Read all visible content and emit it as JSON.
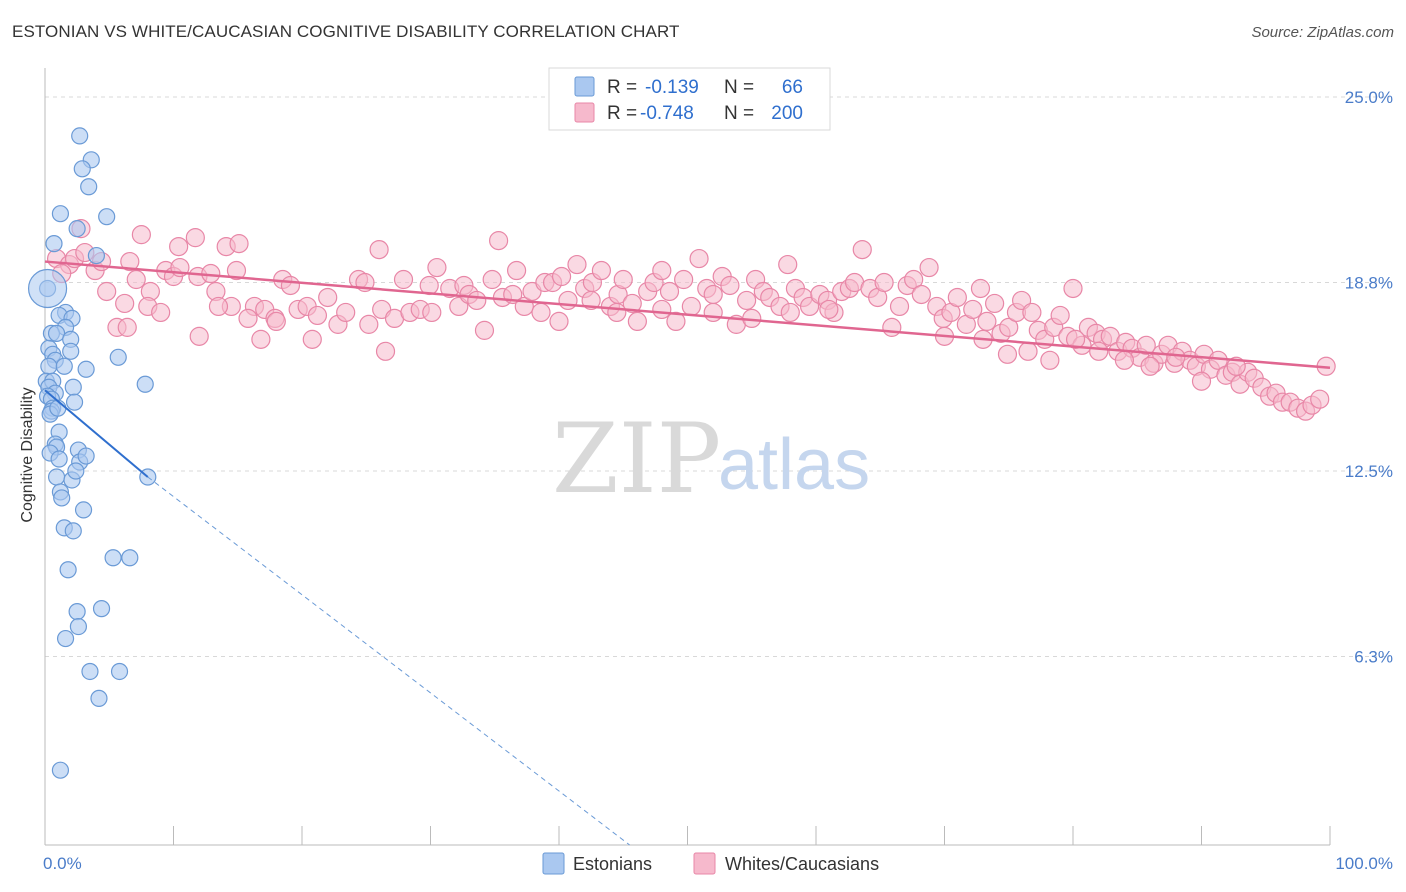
{
  "title": "ESTONIAN VS WHITE/CAUCASIAN COGNITIVE DISABILITY CORRELATION CHART",
  "source": "Source: ZipAtlas.com",
  "watermark": {
    "zip": "ZIP",
    "atlas": "atlas"
  },
  "colors": {
    "estonian_fill": "#aac8f0",
    "estonian_stroke": "#6a9ad6",
    "estonian_line": "#2f6fce",
    "white_fill": "#f6b9cc",
    "white_stroke": "#e887a7",
    "white_line": "#e06690",
    "tick_text": "#4a7cc9",
    "grid": "#d8d8d8"
  },
  "legend": {
    "r_label": "R =",
    "n_label": "N =",
    "rows": [
      {
        "r": "-0.139",
        "n": "66"
      },
      {
        "r": "-0.748",
        "n": "200"
      }
    ]
  },
  "chart_data": {
    "type": "scatter",
    "title": "ESTONIAN VS WHITE/CAUCASIAN COGNITIVE DISABILITY CORRELATION CHART",
    "xlabel": "",
    "ylabel": "Cognitive Disability",
    "xlim": [
      0,
      100
    ],
    "ylim": [
      0,
      25
    ],
    "x_tick_labels": [
      "0.0%",
      "100.0%"
    ],
    "y_ticks": [
      6.3,
      12.5,
      18.8,
      25.0
    ],
    "y_tick_labels": [
      "6.3%",
      "12.5%",
      "18.8%",
      "25.0%"
    ],
    "grid": "horizontal dashed",
    "legend_position": "top-center",
    "series": [
      {
        "name": "Estonians",
        "r": -0.139,
        "n": 66,
        "trend": {
          "x": [
            0,
            8
          ],
          "y": [
            15.2,
            12.3
          ]
        },
        "trend_extension": {
          "x": [
            8,
            45.5
          ],
          "y": [
            12.3,
            0
          ]
        },
        "points": [
          [
            0.2,
            18.6
          ],
          [
            2.7,
            23.7
          ],
          [
            3.6,
            22.9
          ],
          [
            2.9,
            22.6
          ],
          [
            3.4,
            22.0
          ],
          [
            1.2,
            21.1
          ],
          [
            4.8,
            21.0
          ],
          [
            2.5,
            20.6
          ],
          [
            0.7,
            20.1
          ],
          [
            4.0,
            19.7
          ],
          [
            1.6,
            17.8
          ],
          [
            1.1,
            17.7
          ],
          [
            2.1,
            17.6
          ],
          [
            1.6,
            17.3
          ],
          [
            0.5,
            17.1
          ],
          [
            0.9,
            17.1
          ],
          [
            2.0,
            16.9
          ],
          [
            0.3,
            16.6
          ],
          [
            0.6,
            16.4
          ],
          [
            2.0,
            16.5
          ],
          [
            5.7,
            16.3
          ],
          [
            0.8,
            16.2
          ],
          [
            0.3,
            16.0
          ],
          [
            1.5,
            16.0
          ],
          [
            3.2,
            15.9
          ],
          [
            0.1,
            15.5
          ],
          [
            0.6,
            15.5
          ],
          [
            0.3,
            15.3
          ],
          [
            2.2,
            15.3
          ],
          [
            7.8,
            15.4
          ],
          [
            0.8,
            15.1
          ],
          [
            0.2,
            15.0
          ],
          [
            0.5,
            14.9
          ],
          [
            2.3,
            14.8
          ],
          [
            0.6,
            14.6
          ],
          [
            0.5,
            14.5
          ],
          [
            1.1,
            13.8
          ],
          [
            0.8,
            13.4
          ],
          [
            0.9,
            13.3
          ],
          [
            2.6,
            13.2
          ],
          [
            0.4,
            13.1
          ],
          [
            1.1,
            12.9
          ],
          [
            2.7,
            12.8
          ],
          [
            0.9,
            12.3
          ],
          [
            2.1,
            12.2
          ],
          [
            8.0,
            12.3
          ],
          [
            1.2,
            11.8
          ],
          [
            1.3,
            11.6
          ],
          [
            3.0,
            11.2
          ],
          [
            1.5,
            10.6
          ],
          [
            2.2,
            10.5
          ],
          [
            5.3,
            9.6
          ],
          [
            6.6,
            9.6
          ],
          [
            1.8,
            9.2
          ],
          [
            4.4,
            7.9
          ],
          [
            2.5,
            7.8
          ],
          [
            2.6,
            7.3
          ],
          [
            1.6,
            6.9
          ],
          [
            3.5,
            5.8
          ],
          [
            5.8,
            5.8
          ],
          [
            4.2,
            4.9
          ],
          [
            1.2,
            2.5
          ],
          [
            0.4,
            14.4
          ],
          [
            1.0,
            14.6
          ],
          [
            3.2,
            13.0
          ],
          [
            2.4,
            12.5
          ]
        ]
      },
      {
        "name": "Whites/Caucasians",
        "r": -0.748,
        "n": 200,
        "trend": {
          "x": [
            0,
            100
          ],
          "y": [
            19.5,
            15.95
          ]
        },
        "points": [
          [
            0.9,
            19.6
          ],
          [
            1.9,
            19.4
          ],
          [
            2.3,
            19.6
          ],
          [
            1.3,
            19.1
          ],
          [
            2.8,
            20.6
          ],
          [
            3.1,
            19.8
          ],
          [
            3.9,
            19.2
          ],
          [
            4.4,
            19.5
          ],
          [
            4.8,
            18.5
          ],
          [
            5.6,
            17.3
          ],
          [
            6.4,
            17.3
          ],
          [
            6.6,
            19.5
          ],
          [
            7.1,
            18.9
          ],
          [
            7.5,
            20.4
          ],
          [
            8.2,
            18.5
          ],
          [
            8.0,
            18.0
          ],
          [
            9.0,
            17.8
          ],
          [
            9.4,
            19.2
          ],
          [
            10.0,
            19.0
          ],
          [
            10.5,
            19.3
          ],
          [
            10.4,
            20.0
          ],
          [
            11.7,
            20.3
          ],
          [
            11.9,
            19.0
          ],
          [
            12.9,
            19.1
          ],
          [
            13.3,
            18.5
          ],
          [
            14.5,
            18.0
          ],
          [
            14.1,
            20.0
          ],
          [
            15.1,
            20.1
          ],
          [
            14.9,
            19.2
          ],
          [
            16.3,
            18.0
          ],
          [
            17.1,
            17.9
          ],
          [
            17.9,
            17.6
          ],
          [
            18.5,
            18.9
          ],
          [
            19.1,
            18.7
          ],
          [
            19.7,
            17.9
          ],
          [
            20.4,
            18.0
          ],
          [
            20.8,
            16.9
          ],
          [
            21.2,
            17.7
          ],
          [
            22.0,
            18.3
          ],
          [
            22.8,
            17.4
          ],
          [
            23.4,
            17.8
          ],
          [
            24.4,
            18.9
          ],
          [
            24.9,
            18.8
          ],
          [
            25.2,
            17.4
          ],
          [
            26.2,
            17.9
          ],
          [
            26.0,
            19.9
          ],
          [
            27.2,
            17.6
          ],
          [
            27.9,
            18.9
          ],
          [
            28.4,
            17.8
          ],
          [
            29.2,
            17.9
          ],
          [
            29.9,
            18.7
          ],
          [
            30.1,
            17.8
          ],
          [
            30.5,
            19.3
          ],
          [
            31.5,
            18.6
          ],
          [
            32.2,
            18.0
          ],
          [
            32.6,
            18.7
          ],
          [
            33.0,
            18.4
          ],
          [
            33.6,
            18.2
          ],
          [
            34.2,
            17.2
          ],
          [
            34.8,
            18.9
          ],
          [
            35.3,
            20.2
          ],
          [
            35.6,
            18.3
          ],
          [
            36.4,
            18.4
          ],
          [
            36.7,
            19.2
          ],
          [
            37.3,
            18.0
          ],
          [
            37.9,
            18.5
          ],
          [
            38.6,
            17.8
          ],
          [
            38.9,
            18.8
          ],
          [
            39.5,
            18.8
          ],
          [
            40.2,
            19.0
          ],
          [
            40.7,
            18.2
          ],
          [
            41.4,
            19.4
          ],
          [
            42.0,
            18.6
          ],
          [
            42.6,
            18.8
          ],
          [
            43.3,
            19.2
          ],
          [
            44.0,
            18.0
          ],
          [
            44.6,
            18.4
          ],
          [
            45.0,
            18.9
          ],
          [
            45.7,
            18.1
          ],
          [
            46.1,
            17.5
          ],
          [
            46.9,
            18.5
          ],
          [
            47.4,
            18.8
          ],
          [
            48.0,
            19.2
          ],
          [
            48.6,
            18.5
          ],
          [
            49.1,
            17.5
          ],
          [
            49.7,
            18.9
          ],
          [
            50.3,
            18.0
          ],
          [
            50.9,
            19.6
          ],
          [
            51.5,
            18.6
          ],
          [
            52.0,
            18.4
          ],
          [
            52.7,
            19.0
          ],
          [
            53.3,
            18.7
          ],
          [
            53.8,
            17.4
          ],
          [
            54.6,
            18.2
          ],
          [
            55.3,
            18.9
          ],
          [
            55.9,
            18.5
          ],
          [
            56.4,
            18.3
          ],
          [
            57.2,
            18.0
          ],
          [
            57.8,
            19.4
          ],
          [
            58.4,
            18.6
          ],
          [
            59.0,
            18.3
          ],
          [
            59.5,
            18.0
          ],
          [
            60.3,
            18.4
          ],
          [
            60.9,
            18.2
          ],
          [
            61.4,
            17.8
          ],
          [
            62.0,
            18.5
          ],
          [
            62.6,
            18.6
          ],
          [
            63.0,
            18.8
          ],
          [
            63.6,
            19.9
          ],
          [
            64.2,
            18.6
          ],
          [
            64.8,
            18.3
          ],
          [
            65.3,
            18.8
          ],
          [
            65.9,
            17.3
          ],
          [
            66.5,
            18.0
          ],
          [
            67.1,
            18.7
          ],
          [
            67.6,
            18.9
          ],
          [
            68.2,
            18.4
          ],
          [
            68.8,
            19.3
          ],
          [
            69.4,
            18.0
          ],
          [
            69.9,
            17.6
          ],
          [
            70.5,
            17.8
          ],
          [
            71.0,
            18.3
          ],
          [
            71.7,
            17.4
          ],
          [
            72.2,
            17.9
          ],
          [
            72.8,
            18.6
          ],
          [
            73.3,
            17.5
          ],
          [
            73.9,
            18.1
          ],
          [
            74.4,
            17.1
          ],
          [
            75.0,
            17.3
          ],
          [
            75.6,
            17.8
          ],
          [
            76.0,
            18.2
          ],
          [
            76.8,
            17.8
          ],
          [
            77.3,
            17.2
          ],
          [
            77.8,
            16.9
          ],
          [
            78.5,
            17.3
          ],
          [
            79.0,
            17.7
          ],
          [
            79.6,
            17.0
          ],
          [
            80.0,
            18.6
          ],
          [
            80.7,
            16.7
          ],
          [
            81.2,
            17.3
          ],
          [
            81.8,
            17.1
          ],
          [
            82.3,
            16.9
          ],
          [
            82.9,
            17.0
          ],
          [
            83.5,
            16.5
          ],
          [
            84.1,
            16.8
          ],
          [
            84.6,
            16.6
          ],
          [
            85.2,
            16.3
          ],
          [
            85.7,
            16.7
          ],
          [
            86.3,
            16.1
          ],
          [
            86.9,
            16.4
          ],
          [
            87.4,
            16.7
          ],
          [
            87.9,
            16.1
          ],
          [
            88.5,
            16.5
          ],
          [
            89.1,
            16.2
          ],
          [
            89.6,
            16.0
          ],
          [
            90.2,
            16.4
          ],
          [
            90.7,
            15.9
          ],
          [
            91.3,
            16.2
          ],
          [
            91.9,
            15.7
          ],
          [
            92.4,
            15.8
          ],
          [
            93.0,
            15.4
          ],
          [
            93.6,
            15.8
          ],
          [
            94.1,
            15.6
          ],
          [
            94.7,
            15.3
          ],
          [
            95.3,
            15.0
          ],
          [
            95.8,
            15.1
          ],
          [
            96.3,
            14.8
          ],
          [
            96.9,
            14.8
          ],
          [
            97.5,
            14.6
          ],
          [
            98.1,
            14.5
          ],
          [
            98.6,
            14.7
          ],
          [
            99.2,
            14.9
          ],
          [
            99.7,
            16.0
          ],
          [
            92.7,
            16.0
          ],
          [
            90.0,
            15.5
          ],
          [
            88.0,
            16.3
          ],
          [
            86.0,
            16.0
          ],
          [
            84.0,
            16.2
          ],
          [
            82.0,
            16.5
          ],
          [
            80.2,
            16.9
          ],
          [
            78.2,
            16.2
          ],
          [
            76.5,
            16.5
          ],
          [
            74.9,
            16.4
          ],
          [
            73.0,
            16.9
          ],
          [
            70.0,
            17.0
          ],
          [
            61.0,
            17.9
          ],
          [
            58.0,
            17.8
          ],
          [
            55.0,
            17.6
          ],
          [
            52.0,
            17.8
          ],
          [
            48.0,
            17.9
          ],
          [
            44.5,
            17.8
          ],
          [
            42.5,
            18.2
          ],
          [
            40.0,
            17.5
          ],
          [
            26.5,
            16.5
          ],
          [
            16.8,
            16.9
          ],
          [
            15.8,
            17.6
          ],
          [
            18.0,
            17.5
          ],
          [
            12.0,
            17.0
          ],
          [
            13.5,
            18.0
          ],
          [
            6.2,
            18.1
          ]
        ]
      }
    ]
  },
  "bottom_legend": [
    "Estonians",
    "Whites/Caucasians"
  ]
}
